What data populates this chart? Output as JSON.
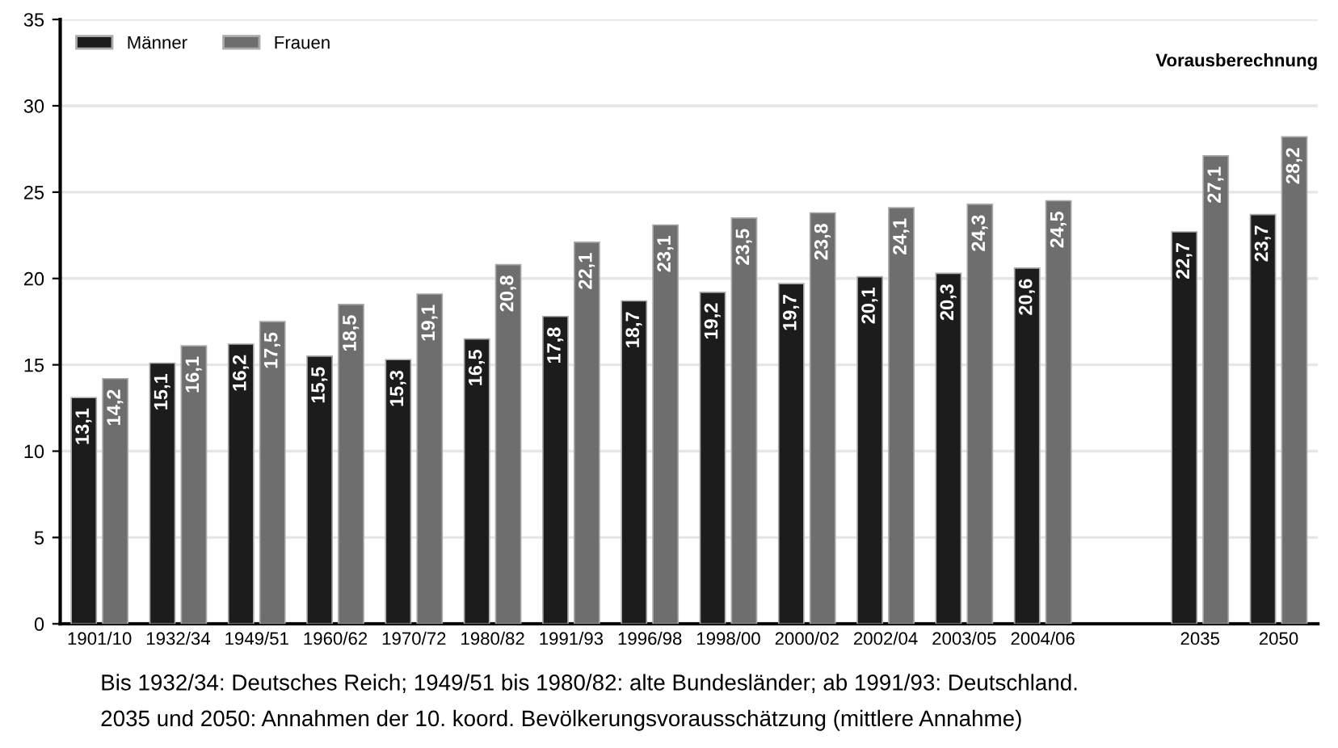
{
  "chart_data": {
    "type": "bar",
    "categories": [
      "1901/10",
      "1932/34",
      "1949/51",
      "1960/62",
      "1970/72",
      "1980/82",
      "1991/93",
      "1996/98",
      "1998/00",
      "2000/02",
      "2002/04",
      "2003/05",
      "2004/06",
      null,
      "2035",
      "2050"
    ],
    "series": [
      {
        "name": "Männer",
        "color": "#1c1c1c",
        "values": [
          13.1,
          15.1,
          16.2,
          15.5,
          15.3,
          16.5,
          17.8,
          18.7,
          19.2,
          19.7,
          20.1,
          20.3,
          20.6,
          null,
          22.7,
          23.7
        ],
        "value_labels": [
          "13,1",
          "15,1",
          "16,2",
          "15,5",
          "15,3",
          "16,5",
          "17,8",
          "18,7",
          "19,2",
          "19,7",
          "20,1",
          "20,3",
          "20,6",
          null,
          "22,7",
          "23,7"
        ]
      },
      {
        "name": "Frauen",
        "color": "#6e6e6e",
        "values": [
          14.2,
          16.1,
          17.5,
          18.5,
          19.1,
          20.8,
          22.1,
          23.1,
          23.5,
          23.8,
          24.1,
          24.3,
          24.5,
          null,
          27.1,
          28.2
        ],
        "value_labels": [
          "14,2",
          "16,1",
          "17,5",
          "18,5",
          "19,1",
          "20,8",
          "22,1",
          "23,1",
          "23,5",
          "23,8",
          "24,1",
          "24,3",
          "24,5",
          null,
          "27,1",
          "28,2"
        ]
      }
    ],
    "ylim": [
      0,
      35
    ],
    "yticks": [
      0,
      5,
      10,
      15,
      20,
      25,
      30,
      35
    ],
    "grid": "y",
    "legend": "top left",
    "annotations": [
      "Vorausberechnung",
      "Bis 1932/34: Deutsches Reich; 1949/51 bis 1980/82: alte Bundesländer; ab 1991/93: Deutschland.",
      "2035 und 2050: Annahmen der 10. koord. Bevölkerungsvorausschätzung (mittlere Annahme)"
    ]
  }
}
